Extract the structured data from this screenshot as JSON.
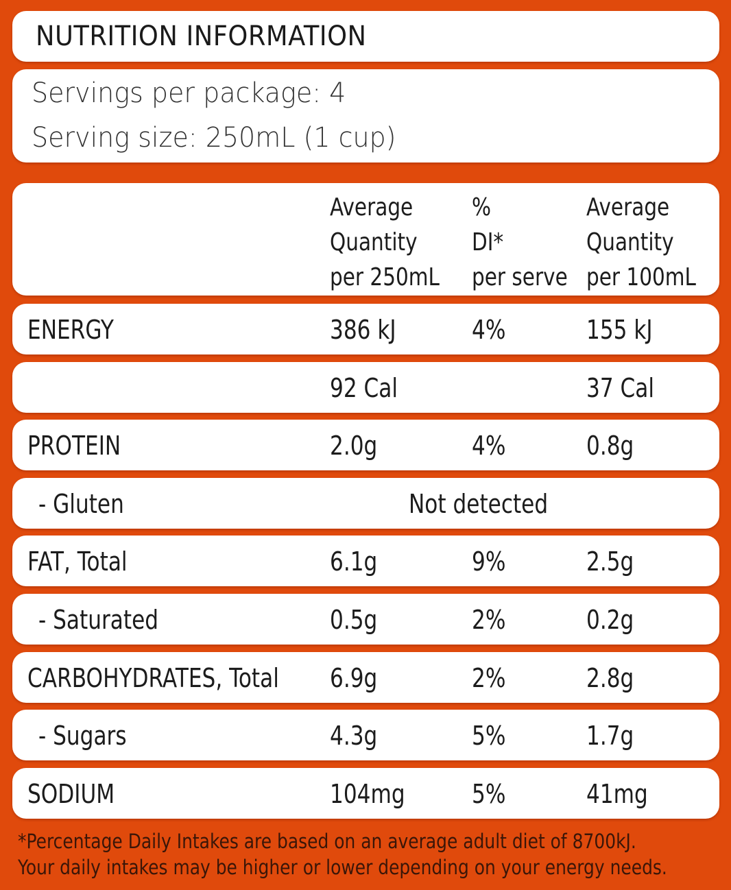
{
  "title": "NUTRITION INFORMATION",
  "servings": {
    "per_package": "Servings per package: 4",
    "serving_size": "Serving size: 250mL (1 cup)"
  },
  "columns": {
    "per_serve": [
      "Average",
      "Quantity",
      "per 250mL"
    ],
    "di": [
      "%",
      "DI*",
      "per serve"
    ],
    "per_100": [
      "Average",
      "Quantity",
      "per 100mL"
    ]
  },
  "rows": [
    {
      "name": "ENERGY",
      "per_serve": "386 kJ",
      "di": "4%",
      "per_100": "155 kJ"
    },
    {
      "name": "",
      "per_serve": "92 Cal",
      "di": "",
      "per_100": "37 Cal"
    },
    {
      "name": "PROTEIN",
      "per_serve": "2.0g",
      "di": "4%",
      "per_100": "0.8g"
    },
    {
      "name": "- Gluten",
      "span_value": "Not detected"
    },
    {
      "name": "FAT, Total",
      "per_serve": "6.1g",
      "di": "9%",
      "per_100": "2.5g"
    },
    {
      "name": "- Saturated",
      "per_serve": "0.5g",
      "di": "2%",
      "per_100": "0.2g"
    },
    {
      "name": "CARBOHYDRATES, Total",
      "per_serve": "6.9g",
      "di": "2%",
      "per_100": "2.8g"
    },
    {
      "name": "- Sugars",
      "per_serve": "4.3g",
      "di": "5%",
      "per_100": "1.7g"
    },
    {
      "name": "SODIUM",
      "per_serve": "104mg",
      "di": "5%",
      "per_100": "41mg"
    }
  ],
  "footnote": [
    "*Percentage Daily Intakes are based on an average adult diet of 8700kJ.",
    "Your daily intakes may be higher or lower depending on your energy needs."
  ],
  "colors": {
    "background": "#e04a0c",
    "card": "#ffffff",
    "text": "#1c1c1c",
    "footnote_text": "#3a1608"
  }
}
